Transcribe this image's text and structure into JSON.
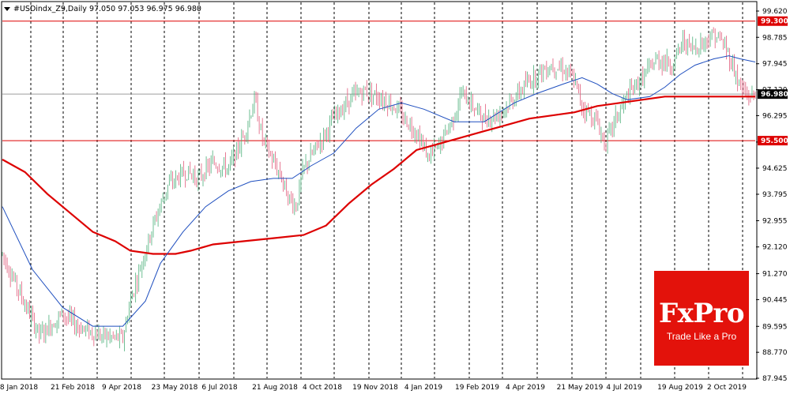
{
  "header": {
    "symbol_text": "#USDindx_Z9,Daily  97.050 97.053 96.975 96.980",
    "icon": "triangle-down-icon"
  },
  "price_boxes": {
    "resistance": "99.300",
    "support": "95.500",
    "last": "96.980"
  },
  "logo": {
    "title": "FxPro",
    "subtitle": "Trade Like a Pro",
    "color": "#e3120b"
  },
  "colors": {
    "up_candle": "#4caf7a",
    "down_candle": "#e05a7a",
    "ma_fast": "#1f4fbf",
    "ma_slow": "#dd0000",
    "level_line": "#dd0000",
    "last_line": "#9e9e9e",
    "grid": "#000000"
  },
  "chart_data": {
    "type": "candlestick",
    "y_axis": {
      "ticks": [
        "99.620",
        "98.785",
        "97.945",
        "97.120",
        "96.295",
        "95.455",
        "94.625",
        "93.795",
        "92.955",
        "92.120",
        "91.270",
        "90.445",
        "89.595",
        "88.770",
        "87.945"
      ],
      "ylim": [
        87.945,
        99.62
      ]
    },
    "x_axis": {
      "labels": [
        "8 Jan 2018",
        "21 Feb 2018",
        "9 Apr 2018",
        "23 May 2018",
        "6 Jul 2018",
        "21 Aug 2018",
        "4 Oct 2018",
        "19 Nov 2018",
        "4 Jan 2019",
        "19 Feb 2019",
        "4 Apr 2019",
        "21 May 2019",
        "4 Jul 2019",
        "19 Aug 2019",
        "2 Oct 2019"
      ]
    },
    "levels": [
      {
        "value": 99.3,
        "color": "#dd0000"
      },
      {
        "value": 95.5,
        "color": "#dd0000"
      },
      {
        "value": 96.98,
        "color": "#9e9e9e"
      }
    ],
    "price_path": [
      [
        0,
        91.9
      ],
      [
        0.02,
        90.8
      ],
      [
        0.05,
        89.3
      ],
      [
        0.08,
        90.0
      ],
      [
        0.1,
        89.6
      ],
      [
        0.13,
        89.3
      ],
      [
        0.16,
        89.2
      ],
      [
        0.17,
        90.4
      ],
      [
        0.18,
        91.2
      ],
      [
        0.2,
        92.8
      ],
      [
        0.22,
        94.1
      ],
      [
        0.245,
        94.5
      ],
      [
        0.26,
        94.3
      ],
      [
        0.28,
        94.8
      ],
      [
        0.3,
        94.6
      ],
      [
        0.32,
        95.6
      ],
      [
        0.335,
        96.8
      ],
      [
        0.345,
        95.6
      ],
      [
        0.36,
        94.8
      ],
      [
        0.37,
        94.4
      ],
      [
        0.38,
        93.7
      ],
      [
        0.39,
        93.4
      ],
      [
        0.4,
        94.6
      ],
      [
        0.42,
        95.4
      ],
      [
        0.44,
        96.2
      ],
      [
        0.46,
        96.8
      ],
      [
        0.48,
        97.1
      ],
      [
        0.5,
        96.9
      ],
      [
        0.52,
        96.6
      ],
      [
        0.53,
        96.3
      ],
      [
        0.55,
        95.8
      ],
      [
        0.565,
        95.0
      ],
      [
        0.58,
        95.3
      ],
      [
        0.6,
        96.3
      ],
      [
        0.61,
        97.0
      ],
      [
        0.625,
        96.6
      ],
      [
        0.64,
        96.2
      ],
      [
        0.655,
        96.3
      ],
      [
        0.67,
        96.6
      ],
      [
        0.685,
        97.0
      ],
      [
        0.7,
        97.4
      ],
      [
        0.715,
        97.7
      ],
      [
        0.73,
        97.9
      ],
      [
        0.745,
        97.8
      ],
      [
        0.76,
        97.4
      ],
      [
        0.77,
        96.6
      ],
      [
        0.79,
        96.1
      ],
      [
        0.8,
        95.4
      ],
      [
        0.815,
        96.2
      ],
      [
        0.83,
        96.9
      ],
      [
        0.85,
        97.5
      ],
      [
        0.87,
        98.1
      ],
      [
        0.89,
        97.9
      ],
      [
        0.905,
        98.7
      ],
      [
        0.915,
        98.4
      ],
      [
        0.93,
        98.6
      ],
      [
        0.945,
        98.9
      ],
      [
        0.96,
        98.5
      ],
      [
        0.97,
        97.9
      ],
      [
        0.98,
        97.2
      ],
      [
        0.99,
        96.9
      ],
      [
        1.0,
        96.98
      ]
    ],
    "ma_fast_path": [
      [
        0,
        93.4
      ],
      [
        0.04,
        91.4
      ],
      [
        0.08,
        90.2
      ],
      [
        0.12,
        89.6
      ],
      [
        0.16,
        89.6
      ],
      [
        0.19,
        90.4
      ],
      [
        0.21,
        91.6
      ],
      [
        0.24,
        92.6
      ],
      [
        0.27,
        93.4
      ],
      [
        0.3,
        93.9
      ],
      [
        0.33,
        94.2
      ],
      [
        0.36,
        94.3
      ],
      [
        0.385,
        94.3
      ],
      [
        0.41,
        94.7
      ],
      [
        0.44,
        95.1
      ],
      [
        0.47,
        95.9
      ],
      [
        0.5,
        96.5
      ],
      [
        0.53,
        96.7
      ],
      [
        0.56,
        96.5
      ],
      [
        0.6,
        96.1
      ],
      [
        0.64,
        96.1
      ],
      [
        0.68,
        96.7
      ],
      [
        0.71,
        97.0
      ],
      [
        0.745,
        97.3
      ],
      [
        0.77,
        97.5
      ],
      [
        0.79,
        97.3
      ],
      [
        0.81,
        97.0
      ],
      [
        0.83,
        96.8
      ],
      [
        0.86,
        96.9
      ],
      [
        0.88,
        97.2
      ],
      [
        0.9,
        97.6
      ],
      [
        0.92,
        97.9
      ],
      [
        0.945,
        98.1
      ],
      [
        0.965,
        98.2
      ],
      [
        0.98,
        98.1
      ],
      [
        1.0,
        98.0
      ]
    ],
    "ma_slow_path": [
      [
        0,
        94.9
      ],
      [
        0.03,
        94.5
      ],
      [
        0.06,
        93.8
      ],
      [
        0.09,
        93.2
      ],
      [
        0.12,
        92.6
      ],
      [
        0.15,
        92.3
      ],
      [
        0.17,
        92.0
      ],
      [
        0.2,
        91.9
      ],
      [
        0.23,
        91.9
      ],
      [
        0.25,
        92.0
      ],
      [
        0.28,
        92.2
      ],
      [
        0.32,
        92.3
      ],
      [
        0.36,
        92.4
      ],
      [
        0.4,
        92.5
      ],
      [
        0.43,
        92.8
      ],
      [
        0.46,
        93.5
      ],
      [
        0.49,
        94.1
      ],
      [
        0.52,
        94.6
      ],
      [
        0.55,
        95.2
      ],
      [
        0.58,
        95.4
      ],
      [
        0.61,
        95.6
      ],
      [
        0.64,
        95.8
      ],
      [
        0.67,
        96.0
      ],
      [
        0.7,
        96.2
      ],
      [
        0.73,
        96.3
      ],
      [
        0.76,
        96.4
      ],
      [
        0.79,
        96.6
      ],
      [
        0.82,
        96.7
      ],
      [
        0.85,
        96.8
      ],
      [
        0.88,
        96.9
      ],
      [
        0.91,
        96.9
      ],
      [
        0.94,
        96.9
      ],
      [
        0.97,
        96.9
      ],
      [
        1.0,
        96.9
      ]
    ]
  }
}
